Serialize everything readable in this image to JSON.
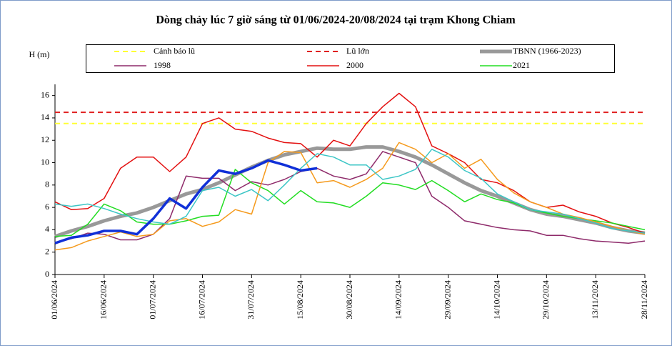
{
  "chart_data": {
    "type": "line",
    "title": "Dòng chảy lúc 7 giờ sáng từ 01/06/2024-20/08/2024 tại trạm Khong Chiam",
    "ylabel": "H (m)",
    "x": [
      "01/06/2024",
      "06/06/2024",
      "11/06/2024",
      "16/06/2024",
      "21/06/2024",
      "26/06/2024",
      "01/07/2024",
      "06/07/2024",
      "11/07/2024",
      "16/07/2024",
      "21/07/2024",
      "26/07/2024",
      "31/07/2024",
      "05/08/2024",
      "10/08/2024",
      "15/08/2024",
      "20/08/2024",
      "25/08/2024",
      "30/08/2024",
      "04/09/2024",
      "09/09/2024",
      "14/09/2024",
      "19/09/2024",
      "24/09/2024",
      "29/09/2024",
      "04/10/2024",
      "09/10/2024",
      "14/10/2024",
      "19/10/2024",
      "24/10/2024",
      "29/10/2024",
      "03/11/2024",
      "08/11/2024",
      "13/11/2024",
      "18/11/2024",
      "23/11/2024",
      "28/11/2024"
    ],
    "xlim": [
      "01/06/2024",
      "28/11/2024"
    ],
    "xticks": [
      "01/06/2024",
      "16/06/2024",
      "01/07/2024",
      "16/07/2024",
      "31/07/2024",
      "15/08/2024",
      "30/08/2024",
      "14/09/2024",
      "29/09/2024",
      "14/10/2024",
      "29/10/2024",
      "13/11/2024",
      "28/11/2024"
    ],
    "ylim": [
      0,
      17
    ],
    "yticks": [
      0,
      2,
      4,
      6,
      8,
      10,
      12,
      14,
      16
    ],
    "series": [
      {
        "name": "Cảnh báo lũ",
        "color": "#ffff33",
        "dash": true,
        "width": 2,
        "values": [
          13.5,
          13.5,
          13.5,
          13.5,
          13.5,
          13.5,
          13.5,
          13.5,
          13.5,
          13.5,
          13.5,
          13.5,
          13.5,
          13.5,
          13.5,
          13.5,
          13.5,
          13.5,
          13.5,
          13.5,
          13.5,
          13.5,
          13.5,
          13.5,
          13.5,
          13.5,
          13.5,
          13.5,
          13.5,
          13.5,
          13.5,
          13.5,
          13.5,
          13.5,
          13.5,
          13.5,
          13.5
        ]
      },
      {
        "name": "Lũ lớn",
        "color": "#e02020",
        "dash": true,
        "width": 2,
        "values": [
          14.5,
          14.5,
          14.5,
          14.5,
          14.5,
          14.5,
          14.5,
          14.5,
          14.5,
          14.5,
          14.5,
          14.5,
          14.5,
          14.5,
          14.5,
          14.5,
          14.5,
          14.5,
          14.5,
          14.5,
          14.5,
          14.5,
          14.5,
          14.5,
          14.5,
          14.5,
          14.5,
          14.5,
          14.5,
          14.5,
          14.5,
          14.5,
          14.5,
          14.5,
          14.5,
          14.5,
          14.5
        ]
      },
      {
        "name": "TBNN (1966-2023)",
        "color": "#999999",
        "width": 5,
        "values": [
          3.4,
          3.9,
          4.3,
          4.8,
          5.2,
          5.5,
          6.0,
          6.6,
          7.2,
          7.6,
          8.2,
          8.9,
          9.6,
          10.2,
          10.7,
          11.0,
          11.3,
          11.2,
          11.2,
          11.4,
          11.4,
          11.0,
          10.5,
          9.8,
          9.0,
          8.2,
          7.5,
          7.0,
          6.4,
          5.8,
          5.4,
          5.2,
          4.9,
          4.6,
          4.2,
          3.9,
          3.7
        ]
      },
      {
        "name": "1998",
        "color": "#8e2a6a",
        "width": 1.5,
        "values": [
          2.8,
          3.2,
          3.7,
          3.6,
          3.1,
          3.1,
          3.6,
          5.0,
          8.8,
          8.6,
          8.6,
          7.5,
          8.3,
          8.0,
          8.5,
          9.2,
          9.5,
          8.8,
          8.5,
          9.0,
          11.0,
          10.5,
          10.0,
          7.0,
          6.0,
          4.8,
          4.5,
          4.2,
          4.0,
          3.9,
          3.5,
          3.5,
          3.2,
          3.0,
          2.9,
          2.8,
          3.0
        ]
      },
      {
        "name": "2000",
        "color": "#e31010",
        "width": 1.5,
        "values": [
          6.5,
          5.8,
          5.9,
          6.8,
          9.5,
          10.5,
          10.5,
          9.2,
          10.5,
          13.5,
          14.0,
          13.0,
          12.8,
          12.2,
          11.8,
          11.7,
          10.5,
          12.0,
          11.5,
          13.5,
          15.0,
          16.2,
          15.0,
          11.5,
          10.8,
          10.0,
          8.5,
          8.2,
          7.5,
          6.5,
          6.0,
          6.2,
          5.6,
          5.2,
          4.6,
          4.2,
          3.7
        ]
      },
      {
        "name": "2021",
        "color": "#22dd22",
        "width": 1.5,
        "values": [
          3.4,
          3.5,
          4.5,
          6.3,
          5.7,
          4.7,
          4.5,
          4.5,
          4.8,
          5.2,
          5.3,
          9.4,
          8.2,
          7.5,
          6.3,
          7.5,
          6.5,
          6.4,
          6.0,
          7.0,
          8.2,
          8.0,
          7.6,
          8.4,
          7.5,
          6.5,
          7.2,
          6.7,
          6.4,
          5.8,
          5.5,
          5.2,
          5.0,
          4.8,
          4.6,
          4.3,
          4.0
        ]
      },
      {
        "color": "#f59a1c",
        "width": 1.5,
        "values": [
          2.2,
          2.4,
          3.0,
          3.4,
          3.8,
          3.4,
          3.6,
          4.8,
          5.0,
          4.3,
          4.7,
          5.8,
          5.4,
          10.0,
          11.0,
          10.9,
          8.2,
          8.4,
          7.8,
          8.5,
          9.5,
          11.8,
          11.2,
          10.0,
          10.8,
          9.5,
          10.3,
          8.5,
          7.3,
          6.5,
          6.0,
          5.4,
          5.1,
          4.7,
          4.3,
          3.9,
          3.6
        ]
      },
      {
        "color": "#3cc6c6",
        "width": 1.5,
        "values": [
          6.3,
          6.1,
          6.3,
          5.9,
          5.4,
          5.0,
          4.7,
          4.5,
          5.2,
          7.5,
          7.8,
          7.0,
          7.6,
          6.6,
          8.0,
          9.5,
          10.8,
          10.5,
          9.8,
          9.8,
          8.5,
          8.8,
          9.4,
          11.2,
          10.5,
          9.3,
          8.6,
          7.2,
          6.5,
          5.8,
          5.6,
          5.4,
          5.0,
          4.6,
          4.1,
          3.9,
          3.7
        ]
      },
      {
        "color": "#1030d8",
        "width": 3.5,
        "values": [
          2.8,
          3.3,
          3.5,
          3.9,
          3.9,
          3.6,
          5.0,
          6.8,
          5.9,
          7.8,
          9.3,
          9.0,
          9.5,
          10.2,
          9.8,
          9.3,
          9.5,
          null,
          null,
          null,
          null,
          null,
          null,
          null,
          null,
          null,
          null,
          null,
          null,
          null,
          null,
          null,
          null,
          null,
          null,
          null,
          null
        ]
      }
    ]
  }
}
